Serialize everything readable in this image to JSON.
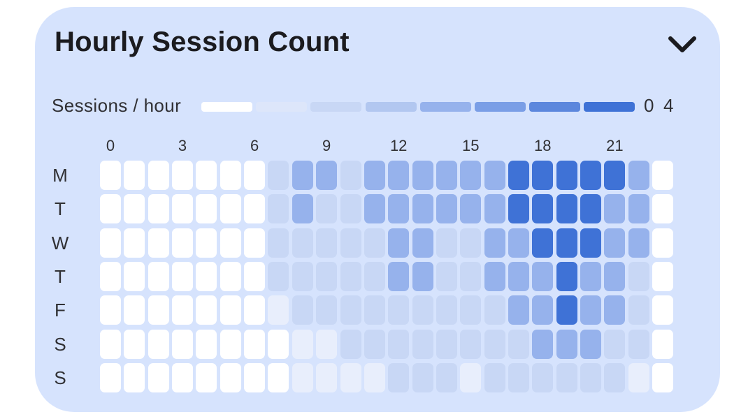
{
  "card": {
    "title": "Hourly Session Count",
    "collapse_icon": "chevron-down-icon"
  },
  "colors": {
    "card_background": "#d6e3fd",
    "scale": [
      "#ffffff",
      "#e8eefc",
      "#dde6fa",
      "#c8d7f5",
      "#b2c7f0",
      "#96b2ec",
      "#7a9ee6",
      "#5c87dd",
      "#3f72d6"
    ]
  },
  "chart_data": {
    "type": "heatmap",
    "title": "Hourly Session Count",
    "legend": {
      "label": "Sessions / hour",
      "min_label": "0",
      "max_label": "4",
      "steps": 8,
      "placement": "top"
    },
    "x": [
      0,
      1,
      2,
      3,
      4,
      5,
      6,
      7,
      8,
      9,
      10,
      11,
      12,
      13,
      14,
      15,
      16,
      17,
      18,
      19,
      20,
      21,
      22,
      23
    ],
    "x_tick_labels": [
      "0",
      "3",
      "6",
      "9",
      "12",
      "15",
      "18",
      "21"
    ],
    "y": [
      "M",
      "T",
      "W",
      "T",
      "F",
      "S",
      "S"
    ],
    "value_range": [
      0,
      4
    ],
    "values": [
      [
        0,
        0,
        0,
        0,
        0,
        0,
        0,
        1.5,
        2.5,
        2.5,
        1.5,
        2.5,
        2.5,
        2.5,
        2.5,
        2.5,
        2.5,
        4,
        4,
        4,
        4,
        4,
        2.5,
        0
      ],
      [
        0,
        0,
        0,
        0,
        0,
        0,
        0,
        1.5,
        2.5,
        1.5,
        1.5,
        2.5,
        2.5,
        2.5,
        2.5,
        2.5,
        2.5,
        4,
        4,
        4,
        4,
        2.5,
        2.5,
        0
      ],
      [
        0,
        0,
        0,
        0,
        0,
        0,
        0,
        1.5,
        1.5,
        1.5,
        1.5,
        1.5,
        2.5,
        2.5,
        1.5,
        1.5,
        2.5,
        2.5,
        4,
        4,
        4,
        2.5,
        2.5,
        0
      ],
      [
        0,
        0,
        0,
        0,
        0,
        0,
        0,
        1.5,
        1.5,
        1.5,
        1.5,
        1.5,
        2.5,
        2.5,
        1.5,
        1.5,
        2.5,
        2.5,
        2.5,
        4,
        2.5,
        2.5,
        1.5,
        0
      ],
      [
        0,
        0,
        0,
        0,
        0,
        0,
        0,
        0.5,
        1.5,
        1.5,
        1.5,
        1.5,
        1.5,
        1.5,
        1.5,
        1.5,
        1.5,
        2.5,
        2.5,
        4,
        2.5,
        2.5,
        1.5,
        0
      ],
      [
        0,
        0,
        0,
        0,
        0,
        0,
        0,
        0,
        0.5,
        0.5,
        1.5,
        1.5,
        1.5,
        1.5,
        1.5,
        1.5,
        1.5,
        1.5,
        2.5,
        2.5,
        2.5,
        1.5,
        1.5,
        0
      ],
      [
        0,
        0,
        0,
        0,
        0,
        0,
        0,
        0,
        0.5,
        0.5,
        0.5,
        0.5,
        1.5,
        1.5,
        1.5,
        0.5,
        1.5,
        1.5,
        1.5,
        1.5,
        1.5,
        1.5,
        0.5,
        0
      ]
    ],
    "grid": false
  }
}
